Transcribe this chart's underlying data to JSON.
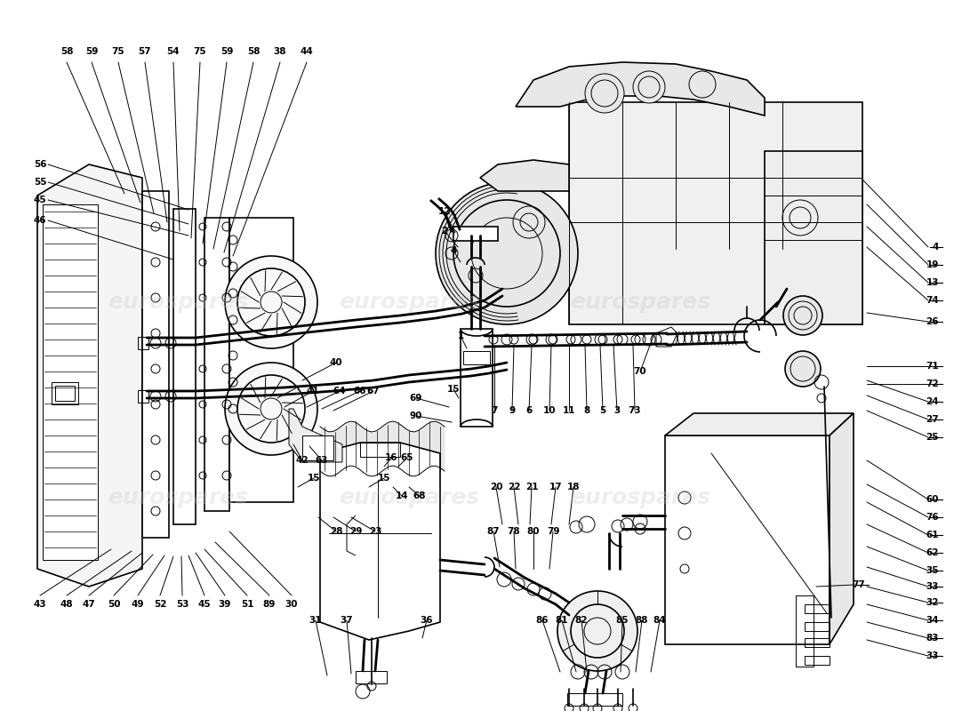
{
  "background_color": "#ffffff",
  "line_color": "#000000",
  "watermark_text": "eurospares",
  "watermark_color": "#c8c8c8",
  "fig_width": 11.0,
  "fig_height": 8.0,
  "dpi": 100
}
